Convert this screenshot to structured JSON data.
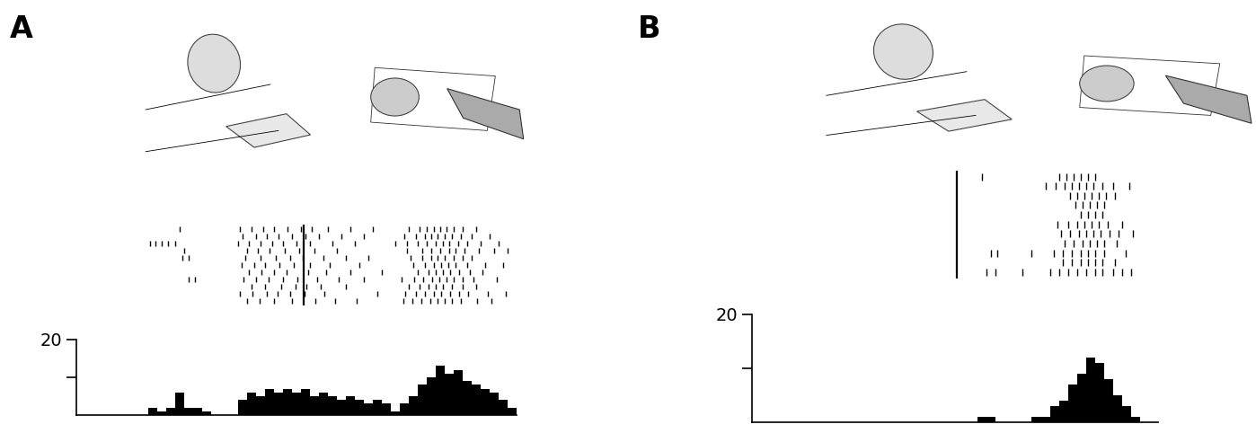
{
  "chart_data": [
    {
      "type": "histogram",
      "title": "A",
      "color": "#000000",
      "bins": [
        0,
        1,
        2,
        3,
        4,
        5,
        6,
        7,
        8,
        9,
        10,
        11,
        12,
        13,
        14,
        15,
        16,
        17,
        18,
        19,
        20,
        21,
        22,
        23,
        24,
        25,
        26,
        27,
        28,
        29,
        30,
        31,
        32,
        33,
        34,
        35,
        36,
        37,
        38,
        39,
        40,
        41,
        42,
        43,
        44,
        45,
        46,
        47,
        48,
        49
      ],
      "counts": [
        0,
        0,
        0,
        0,
        0,
        0,
        0,
        0,
        2,
        1,
        2,
        6,
        2,
        2,
        1,
        0,
        0,
        0,
        4,
        6,
        5,
        7,
        6,
        7,
        6,
        7,
        5,
        6,
        5,
        4,
        5,
        4,
        3,
        4,
        3,
        1,
        3,
        5,
        8,
        10,
        13,
        11,
        12,
        9,
        8,
        7,
        6,
        4,
        2
      ],
      "xlim": [
        0,
        49
      ],
      "xticks": [],
      "ylim": [
        0,
        20
      ],
      "yticks": [
        {
          "value": 10,
          "label": null
        },
        20
      ],
      "tick_labels": "y",
      "event_x": 25.3,
      "raster": [
        [
          11.5,
          18.2,
          19.5,
          20.8,
          22.0,
          23.5,
          25.0,
          26.2,
          28.0,
          30.5,
          33.0,
          37.0,
          38.2,
          39.0,
          39.8,
          40.5,
          41.2,
          42.0,
          43.0,
          44.5
        ],
        [
          18.5,
          20.0,
          21.2,
          22.5,
          24.0,
          25.5,
          27.0,
          29.5,
          32.0,
          36.5,
          37.8,
          38.8,
          39.5,
          40.2,
          41.0,
          41.8,
          42.8,
          44.0,
          46.0
        ],
        [
          8.2,
          8.8,
          9.5,
          10.2,
          11.0,
          18.0,
          19.2,
          20.5,
          21.8,
          23.0,
          24.5,
          26.0,
          28.5,
          31.0,
          35.5,
          36.8,
          38.0,
          39.0,
          40.0,
          40.8,
          41.5,
          42.5,
          43.5,
          45.0,
          47.0
        ],
        [
          12.0,
          19.0,
          20.2,
          21.5,
          23.2,
          24.8,
          26.5,
          29.0,
          36.8,
          38.5,
          39.5,
          40.5,
          41.5,
          42.2,
          43.2,
          44.8,
          46.5,
          48.0
        ],
        [
          11.8,
          12.5,
          18.8,
          20.5,
          22.2,
          23.8,
          25.2,
          27.5,
          30.0,
          32.5,
          37.2,
          38.5,
          39.5,
          40.2,
          41.0,
          42.0,
          43.0,
          44.0
        ],
        [
          18.4,
          19.8,
          21.0,
          22.6,
          24.2,
          26.0,
          28.2,
          31.5,
          37.5,
          38.8,
          39.8,
          40.6,
          41.4,
          42.2,
          43.5,
          45.5,
          47.5
        ],
        [
          19.2,
          20.6,
          22.0,
          23.4,
          25.8,
          27.8,
          30.5,
          34.0,
          38.0,
          39.2,
          40.0,
          40.8,
          41.6,
          42.6,
          43.8,
          45.2
        ],
        [
          12.5,
          13.2,
          18.6,
          20.0,
          21.4,
          23.0,
          24.6,
          26.8,
          29.2,
          32.0,
          36.2,
          37.6,
          38.6,
          39.6,
          40.4,
          41.2,
          42.0,
          43.0,
          44.2,
          46.8
        ],
        [
          19.5,
          21.0,
          22.8,
          24.4,
          25.6,
          27.2,
          30.0,
          37.0,
          38.2,
          39.2,
          40.0,
          40.8,
          41.8,
          43.0,
          44.5
        ],
        [
          18.2,
          19.6,
          21.2,
          22.4,
          23.8,
          25.4,
          27.6,
          33.5,
          36.6,
          37.8,
          38.8,
          39.8,
          40.6,
          41.6,
          42.6,
          43.6,
          45.8,
          47.8
        ],
        [
          19.0,
          20.4,
          22.0,
          24.0,
          26.6,
          28.8,
          31.2,
          36.4,
          37.4,
          38.4,
          39.4,
          40.2,
          41.0,
          41.8,
          42.8,
          44.6,
          46.2
        ]
      ]
    },
    {
      "type": "histogram",
      "title": "B",
      "color": "#000000",
      "bins": [
        0,
        1,
        2,
        3,
        4,
        5,
        6,
        7,
        8,
        9,
        10,
        11,
        12,
        13,
        14,
        15,
        16,
        17,
        18,
        19,
        20,
        21,
        22,
        23,
        24,
        25,
        26,
        27,
        28,
        29,
        30,
        31,
        32,
        33,
        34,
        35,
        36,
        37,
        38,
        39,
        40,
        41,
        42,
        43,
        44,
        45
      ],
      "counts": [
        0,
        0,
        0,
        0,
        0,
        0,
        0,
        0,
        0,
        0,
        0,
        0,
        0,
        0,
        0,
        0,
        0,
        0,
        0,
        0,
        0,
        0,
        0,
        0,
        0,
        1,
        1,
        0,
        0,
        0,
        0,
        1,
        1,
        3,
        4,
        7,
        9,
        12,
        11,
        8,
        5,
        3,
        1,
        0,
        0
      ],
      "xlim": [
        0,
        45
      ],
      "xticks": [],
      "ylim": [
        0,
        20
      ],
      "yticks": [
        {
          "value": 10,
          "label": null
        },
        20
      ],
      "tick_labels": "y",
      "event_x": 22.7,
      "raster": [
        [
          25.5,
          34.0,
          34.8,
          35.6,
          36.4,
          37.2,
          38.0
        ],
        [
          32.5,
          33.6,
          34.6,
          35.4,
          36.2,
          37.0,
          37.8,
          38.8,
          40.0,
          41.8
        ],
        [
          35.2,
          36.0,
          36.8,
          37.6,
          38.4,
          39.2,
          40.2
        ],
        [
          35.8,
          36.6,
          37.4,
          38.2,
          39.0
        ],
        [
          36.4,
          37.2,
          38.0,
          38.8
        ],
        [
          33.8,
          35.0,
          36.0,
          36.8,
          37.6,
          38.4,
          39.4,
          41.0
        ],
        [
          34.2,
          35.2,
          36.2,
          37.0,
          37.8,
          38.6,
          39.6,
          40.6,
          42.2
        ],
        [
          34.6,
          35.6,
          36.6,
          37.4,
          38.2,
          39.0,
          40.4
        ],
        [
          26.5,
          27.2,
          31.0,
          33.4,
          34.4,
          35.4,
          36.4,
          37.2,
          38.0,
          39.0,
          41.4
        ],
        [
          34.4,
          35.4,
          36.4,
          37.2,
          38.0,
          38.8,
          40.2
        ],
        [
          26.0,
          27.0,
          30.0,
          33.0,
          34.0,
          35.0,
          36.0,
          37.0,
          38.0,
          38.8,
          40.0,
          41.0,
          42.0
        ]
      ]
    }
  ]
}
